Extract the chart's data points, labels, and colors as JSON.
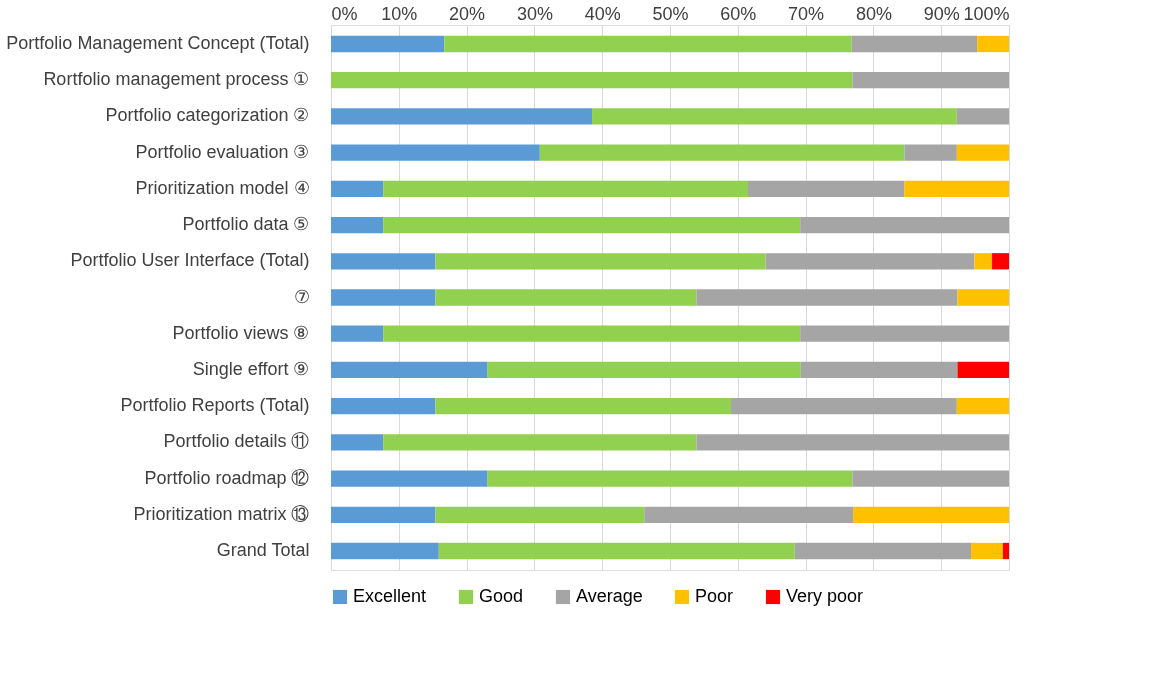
{
  "chart_data": {
    "type": "bar",
    "orientation": "horizontal",
    "stacked": true,
    "categories": [
      "Portfolio Management Concept (Total)",
      "Rortfolio management process ①",
      "Portfolio categorization ②",
      "Portfolio evaluation ③",
      "Prioritization model ④",
      "Portfolio data ⑤",
      "Portfolio User Interface (Total)",
      "⑦",
      "Portfolio views ⑧",
      "Single effort ⑨",
      "Portfolio Reports (Total)",
      "Portfolio details ⑪",
      "Portfolio roadmap ⑫",
      "Prioritization matrix ⑬",
      "Grand Total"
    ],
    "series": [
      {
        "name": "Excellent",
        "color": "#5b9bd5",
        "values": [
          16.7,
          0,
          38.5,
          30.8,
          7.7,
          7.7,
          15.4,
          15.4,
          7.7,
          23.1,
          15.4,
          7.7,
          23.1,
          15.4,
          15.9
        ]
      },
      {
        "name": "Good",
        "color": "#92d050",
        "values": [
          60.1,
          76.9,
          53.8,
          53.8,
          53.8,
          61.5,
          48.7,
          38.5,
          61.5,
          46.2,
          43.6,
          46.2,
          53.8,
          30.8,
          52.5
        ]
      },
      {
        "name": "Average",
        "color": "#a5a5a5",
        "values": [
          18.5,
          23.1,
          7.7,
          7.7,
          23.1,
          30.8,
          30.8,
          38.5,
          30.8,
          23.1,
          33.3,
          46.1,
          23.1,
          30.8,
          26.0
        ]
      },
      {
        "name": "Poor",
        "color": "#ffc000",
        "values": [
          4.7,
          0,
          0,
          7.7,
          15.4,
          0,
          2.6,
          7.6,
          0,
          0,
          7.7,
          0,
          0,
          23.0,
          4.7
        ]
      },
      {
        "name": "Very poor",
        "color": "#ff0000",
        "values": [
          0,
          0,
          0,
          0,
          0,
          0,
          2.5,
          0,
          0,
          7.6,
          0,
          0,
          0,
          0,
          0.9
        ]
      }
    ],
    "xlim": [
      0,
      100
    ],
    "xticks": [
      {
        "value": 0,
        "label": "0%"
      },
      {
        "value": 10,
        "label": "10%"
      },
      {
        "value": 20,
        "label": "20%"
      },
      {
        "value": 30,
        "label": "30%"
      },
      {
        "value": 40,
        "label": "40%"
      },
      {
        "value": 50,
        "label": "50%"
      },
      {
        "value": 60,
        "label": "60%"
      },
      {
        "value": 70,
        "label": "70%"
      },
      {
        "value": 80,
        "label": "80%"
      },
      {
        "value": 90,
        "label": "90%"
      },
      {
        "value": 100,
        "label": "100%"
      }
    ],
    "grid": "x",
    "legend": "bottom"
  }
}
